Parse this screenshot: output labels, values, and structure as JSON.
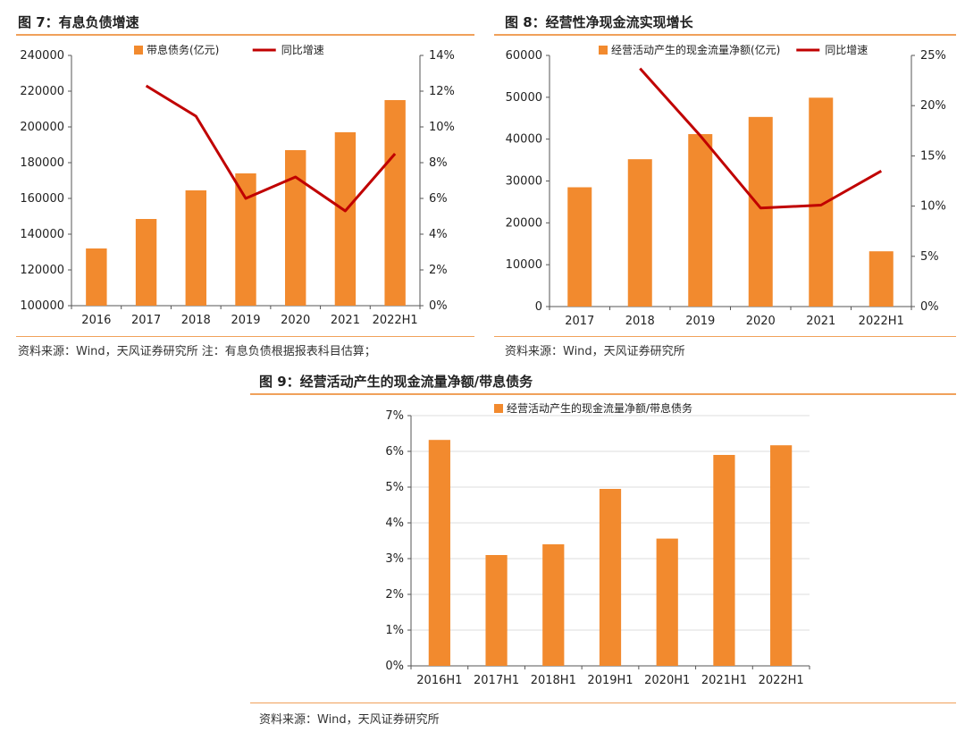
{
  "colors": {
    "bar": "#f28a2e",
    "line": "#c00000",
    "axis": "#555555",
    "grid": "#dcdcdc",
    "rule": "#f0a15a",
    "text": "#222222"
  },
  "fig7": {
    "title": "图 7：有息负债增速",
    "note": "资料来源：Wind，天风证券研究所   注：有息负债根据报表科目估算；",
    "chart_data": {
      "type": "bar",
      "categories": [
        "2016",
        "2017",
        "2018",
        "2019",
        "2020",
        "2021",
        "2022H1"
      ],
      "series": [
        {
          "name": "带息债务(亿元)",
          "type": "bar",
          "axis": "left",
          "values": [
            132000,
            148500,
            164500,
            174000,
            187000,
            197000,
            215000
          ]
        },
        {
          "name": "同比增速",
          "type": "line",
          "axis": "right",
          "values": [
            null,
            12.3,
            10.6,
            6.0,
            7.2,
            5.3,
            8.5
          ]
        }
      ],
      "ylim": [
        100000,
        240000
      ],
      "yticks": [
        "100000",
        "120000",
        "140000",
        "160000",
        "180000",
        "200000",
        "220000",
        "240000"
      ],
      "y2lim": [
        0,
        14
      ],
      "y2ticks": [
        "0%",
        "2%",
        "4%",
        "6%",
        "8%",
        "10%",
        "12%",
        "14%"
      ],
      "legend_position": "top"
    }
  },
  "fig8": {
    "title": "图 8：经营性净现金流实现增长",
    "note": "资料来源：Wind，天风证券研究所",
    "chart_data": {
      "type": "bar",
      "categories": [
        "2017",
        "2018",
        "2019",
        "2020",
        "2021",
        "2022H1"
      ],
      "series": [
        {
          "name": "经营活动产生的现金流量净额(亿元)",
          "type": "bar",
          "axis": "left",
          "values": [
            28500,
            35200,
            41200,
            45300,
            49900,
            13200
          ]
        },
        {
          "name": "同比增速",
          "type": "line",
          "axis": "right",
          "values": [
            null,
            23.7,
            17.0,
            9.8,
            10.1,
            13.5
          ]
        }
      ],
      "ylim": [
        0,
        60000
      ],
      "yticks": [
        "0",
        "10000",
        "20000",
        "30000",
        "40000",
        "50000",
        "60000"
      ],
      "y2lim": [
        0,
        25
      ],
      "y2ticks": [
        "0%",
        "5%",
        "10%",
        "15%",
        "20%",
        "25%"
      ],
      "legend_position": "top"
    }
  },
  "fig9": {
    "title": "图 9：经营活动产生的现金流量净额/带息债务",
    "note": "资料来源：Wind，天风证券研究所",
    "chart_data": {
      "type": "bar",
      "categories": [
        "2016H1",
        "2017H1",
        "2018H1",
        "2019H1",
        "2020H1",
        "2021H1",
        "2022H1"
      ],
      "series": [
        {
          "name": "经营活动产生的现金流量净额/带息债务",
          "type": "bar",
          "axis": "left",
          "values": [
            6.32,
            3.1,
            3.4,
            4.95,
            3.56,
            5.9,
            6.17
          ]
        }
      ],
      "ylim": [
        0,
        7
      ],
      "yticks": [
        "0%",
        "1%",
        "2%",
        "3%",
        "4%",
        "5%",
        "6%",
        "7%"
      ],
      "legend_position": "top",
      "grid": true
    }
  }
}
